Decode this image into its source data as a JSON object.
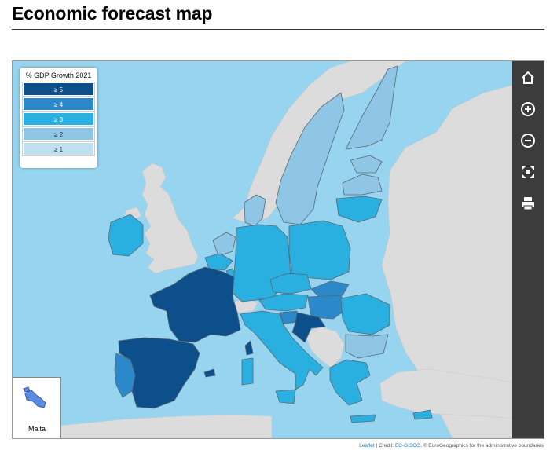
{
  "page": {
    "title": "Economic forecast map"
  },
  "legend": {
    "title": "% GDP Growth 2021",
    "items": [
      {
        "label": "≥ 5",
        "color": "#0d4f8b",
        "text_color": "#ffffff"
      },
      {
        "label": "≥ 4",
        "color": "#2c89c9",
        "text_color": "#ffffff"
      },
      {
        "label": "≥ 3",
        "color": "#2ab0e0",
        "text_color": "#ffffff"
      },
      {
        "label": "≥ 2",
        "color": "#8fc6e6",
        "text_color": "#1b2d3a"
      },
      {
        "label": "≥ 1",
        "color": "#bfe0f0",
        "text_color": "#1b2d3a"
      }
    ]
  },
  "colors": {
    "sea": "#96d4ef",
    "non_eu_land": "#dcdcdc",
    "border": "#5a6670",
    "toolbar": "#3c3c3c"
  },
  "toolbar": {
    "buttons": [
      {
        "name": "home",
        "icon": "home-icon"
      },
      {
        "name": "zoom-in",
        "icon": "zoom-in-icon"
      },
      {
        "name": "zoom-out",
        "icon": "zoom-out-icon"
      },
      {
        "name": "fullscreen",
        "icon": "fullscreen-icon"
      },
      {
        "name": "print",
        "icon": "print-icon"
      }
    ]
  },
  "inset": {
    "label": "Malta"
  },
  "attribution": {
    "leaflet": "Leaflet",
    "sep": " | Credit: ",
    "credit_link": "EC-GISCO",
    "rest": ", © EuroGeographics for the administrative boundaries"
  }
}
